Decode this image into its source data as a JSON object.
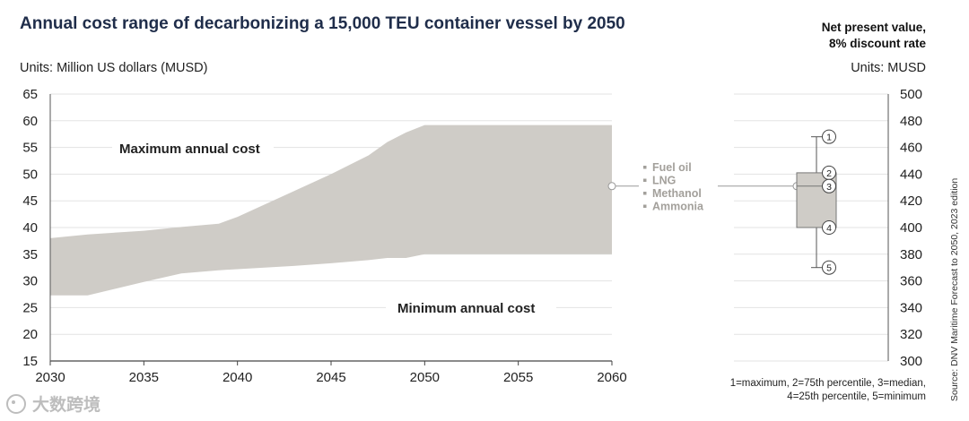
{
  "chart_data": {
    "type": "area",
    "title": "Annual cost range of decarbonizing a 15,000 TEU container vessel by 2050",
    "units_label_prefix": "Units: ",
    "units_label_value": "Million US dollars (MUSD)",
    "x": [
      2030,
      2032,
      2035,
      2037,
      2039,
      2040,
      2043,
      2045,
      2047,
      2048,
      2049,
      2050,
      2055,
      2060
    ],
    "series": [
      {
        "name": "Maximum annual cost",
        "values": [
          38.0,
          38.7,
          39.4,
          40.1,
          40.7,
          42.0,
          46.8,
          50.0,
          53.5,
          56.0,
          57.8,
          59.2,
          59.2,
          59.2
        ]
      },
      {
        "name": "Minimum annual cost",
        "values": [
          27.3,
          27.3,
          29.8,
          31.4,
          32.0,
          32.2,
          32.8,
          33.3,
          33.9,
          34.3,
          34.3,
          35.0,
          35.0,
          35.0
        ]
      }
    ],
    "ylim": [
      15,
      65
    ],
    "yticks": [
      15,
      20,
      25,
      30,
      35,
      40,
      45,
      50,
      55,
      60,
      65
    ],
    "xticks": [
      2030,
      2035,
      2040,
      2045,
      2050,
      2055,
      2060
    ],
    "grid": true,
    "area_color": "#cfccc7",
    "label_max": "Maximum annual cost",
    "label_min": "Minimum annual cost",
    "fuels": [
      "Fuel oil",
      "LNG",
      "Methanol",
      "Ammonia"
    ],
    "npv": {
      "title_line1": "Net present value,",
      "title_line2": "8% discount rate",
      "units_label": "Units: MUSD",
      "ylim": [
        300,
        500
      ],
      "yticks": [
        300,
        320,
        340,
        360,
        380,
        400,
        420,
        440,
        460,
        480,
        500
      ],
      "maximum": 468,
      "p75": 441,
      "median": 431,
      "p25": 400,
      "minimum": 370,
      "marker_labels": [
        "1",
        "2",
        "3",
        "4",
        "5"
      ],
      "footnote_line1": "1=maximum, 2=75th percentile, 3=median,",
      "footnote_line2": "4=25th percentile, 5=minimum"
    },
    "source": "Source: DNV Maritime Forecast to 2050, 2023 edition"
  },
  "watermark_text": "大数跨境"
}
